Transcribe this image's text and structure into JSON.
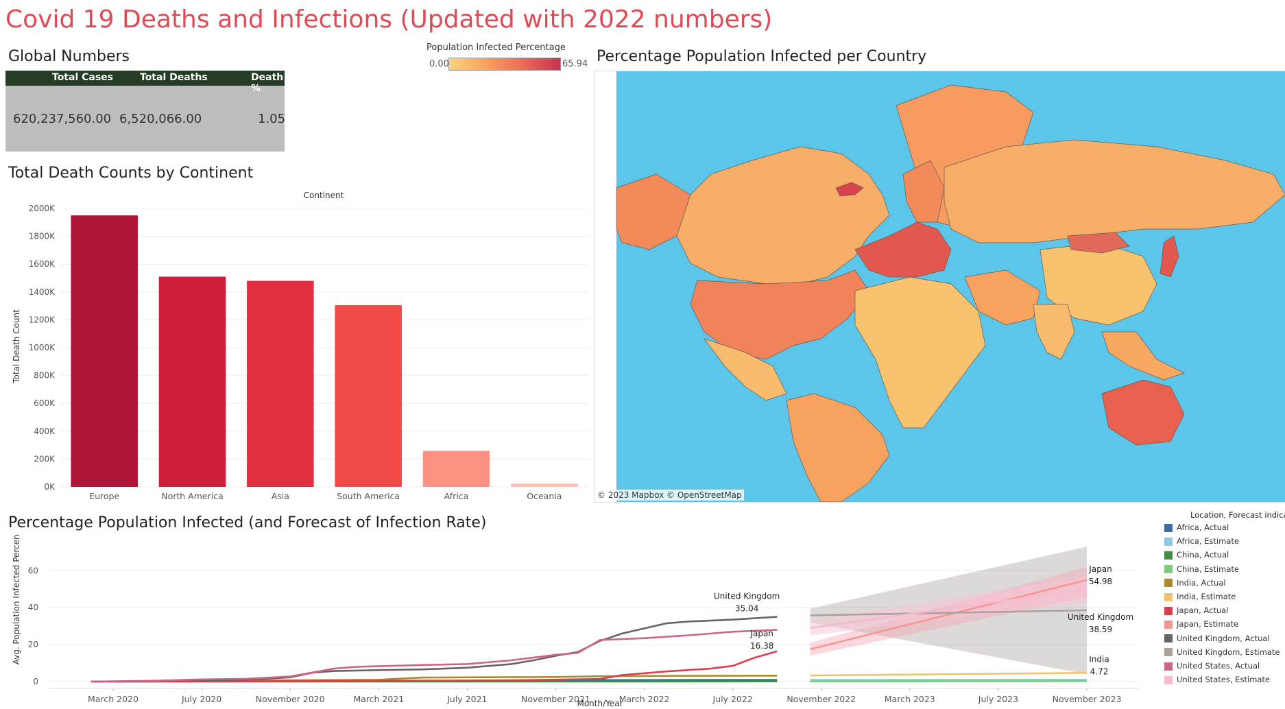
{
  "title": "Covid 19  Deaths and Infections (Updated with 2022 numbers)",
  "global": {
    "section_title": "Global Numbers",
    "headers": [
      "Total Cases",
      "Total Deaths",
      "Death %"
    ],
    "values": [
      "620,237,560.00",
      "6,520,066.00",
      "1.05"
    ]
  },
  "color_legend": {
    "title": "Population Infected Percentage",
    "min": "0.00",
    "max": "65.94",
    "colors": [
      "#fcd27e",
      "#c4354f"
    ]
  },
  "map": {
    "section_title": "Percentage Population Infected per Country",
    "attribution": "© 2023 Mapbox  © OpenStreetMap",
    "ocean_color": "#5bc6ea"
  },
  "chart_data": [
    {
      "type": "bar",
      "title": "Total Death Counts by Continent",
      "header": "Continent",
      "ylabel": "Total Death Count",
      "categories": [
        "Europe",
        "North America",
        "Asia",
        "South America",
        "Africa",
        "Oceania"
      ],
      "values": [
        1950000,
        1510000,
        1480000,
        1305000,
        258000,
        22000
      ],
      "colors": [
        "#ae1435",
        "#cc1d3a",
        "#e12f40",
        "#f24a47",
        "#fd9182",
        "#fbc0b2"
      ],
      "yticks": [
        "0K",
        "200K",
        "400K",
        "600K",
        "800K",
        "1000K",
        "1200K",
        "1400K",
        "1600K",
        "1800K",
        "2000K"
      ],
      "ylim": [
        0,
        2000000
      ],
      "grid": true
    },
    {
      "type": "line",
      "title": "Percentage Population Infected (and Forecast of Infection Rate)",
      "xlabel": "Month/Year",
      "ylabel": "Avg. Population Infected Percent",
      "xticks": [
        "March 2020",
        "July 2020",
        "November 2020",
        "March 2021",
        "July 2021",
        "November 2021",
        "March 2022",
        "July 2022",
        "November 2022",
        "March 2023",
        "July 2023",
        "November 2023"
      ],
      "yticks": [
        "0",
        "20",
        "40",
        "60"
      ],
      "ylim": [
        0,
        72
      ],
      "legend_title": "Location, Forecast indicator",
      "legend_position": "right",
      "x_unit": "months since January 2020",
      "series": [
        {
          "name": "Africa, Actual",
          "color": "#3e6f9f",
          "points": [
            [
              1,
              0
            ],
            [
              4,
              0.1
            ],
            [
              8,
              0.2
            ],
            [
              12,
              0.4
            ],
            [
              16,
              0.5
            ],
            [
              20,
              0.6
            ],
            [
              24,
              0.8
            ],
            [
              28,
              0.9
            ],
            [
              32,
              0.9
            ]
          ]
        },
        {
          "name": "Africa, Estimate",
          "color": "#8fc6e6",
          "points": [
            [
              33.5,
              0.9
            ],
            [
              46,
              1.0
            ]
          ]
        },
        {
          "name": "China, Actual",
          "color": "#3f8f3f",
          "points": [
            [
              1,
              0
            ],
            [
              8,
              0
            ],
            [
              16,
              0
            ],
            [
              24,
              0
            ],
            [
              32,
              0.1
            ]
          ]
        },
        {
          "name": "China, Estimate",
          "color": "#7ecb7a",
          "points": [
            [
              33.5,
              0.1
            ],
            [
              46,
              0.2
            ]
          ]
        },
        {
          "name": "India, Actual",
          "color": "#a98a2c",
          "points": [
            [
              1,
              0
            ],
            [
              6,
              0.4
            ],
            [
              10,
              0.7
            ],
            [
              14,
              1.0
            ],
            [
              16,
              2.2
            ],
            [
              18,
              2.3
            ],
            [
              22,
              2.5
            ],
            [
              24,
              2.9
            ],
            [
              28,
              3.1
            ],
            [
              32,
              3.2
            ]
          ]
        },
        {
          "name": "India, Estimate",
          "color": "#f0c36a",
          "points": [
            [
              33.5,
              3.3
            ],
            [
              46,
              4.72
            ]
          ]
        },
        {
          "name": "Japan, Actual",
          "color": "#d9404e",
          "points": [
            [
              1,
              0
            ],
            [
              8,
              0.1
            ],
            [
              12,
              0.3
            ],
            [
              16,
              0.5
            ],
            [
              20,
              0.7
            ],
            [
              24,
              1.4
            ],
            [
              25,
              3.5
            ],
            [
              27,
              5.5
            ],
            [
              29,
              7.0
            ],
            [
              30,
              8.5
            ],
            [
              31,
              13.0
            ],
            [
              32,
              16.38
            ]
          ]
        },
        {
          "name": "Japan, Estimate",
          "color": "#f7958f",
          "points": [
            [
              33.5,
              17.5
            ],
            [
              46,
              54.98
            ]
          ]
        },
        {
          "name": "United Kingdom, Actual",
          "color": "#6b6262",
          "points": [
            [
              2,
              0
            ],
            [
              4,
              0.3
            ],
            [
              6,
              0.6
            ],
            [
              8,
              1.0
            ],
            [
              10,
              2.3
            ],
            [
              11,
              4.8
            ],
            [
              12,
              5.7
            ],
            [
              14,
              6.2
            ],
            [
              16,
              6.6
            ],
            [
              18,
              7.5
            ],
            [
              20,
              9.5
            ],
            [
              21,
              11.5
            ],
            [
              22,
              14.0
            ],
            [
              23,
              16.0
            ],
            [
              24,
              22.0
            ],
            [
              25,
              26.0
            ],
            [
              27,
              31.5
            ],
            [
              28,
              32.5
            ],
            [
              30,
              33.5
            ],
            [
              32,
              35.04
            ]
          ]
        },
        {
          "name": "United Kingdom, Estimate",
          "color": "#aaa19c",
          "points": [
            [
              33.5,
              35.8
            ],
            [
              46,
              38.59
            ]
          ]
        },
        {
          "name": "United States, Actual",
          "color": "#cc6686",
          "points": [
            [
              1,
              0
            ],
            [
              4,
              0.5
            ],
            [
              6,
              1.2
            ],
            [
              8,
              1.5
            ],
            [
              10,
              2.8
            ],
            [
              12,
              7.0
            ],
            [
              13,
              8.0
            ],
            [
              16,
              9.0
            ],
            [
              18,
              9.5
            ],
            [
              20,
              11.5
            ],
            [
              22,
              14.5
            ],
            [
              23,
              15.5
            ],
            [
              24,
              22.5
            ],
            [
              26,
              23.5
            ],
            [
              28,
              25.0
            ],
            [
              30,
              27.0
            ],
            [
              32,
              28.0
            ]
          ]
        },
        {
          "name": "United States, Estimate",
          "color": "#f7b8d0",
          "points": [
            [
              33.5,
              29.0
            ],
            [
              46,
              50.0
            ]
          ]
        }
      ],
      "bands": [
        {
          "series": "United Kingdom, Estimate",
          "color": "#9d9390",
          "opacity": 0.35,
          "upper": [
            [
              33.5,
              39.5
            ],
            [
              46,
              73.0
            ]
          ],
          "lower": [
            [
              33.5,
              32.0
            ],
            [
              46,
              4.0
            ]
          ]
        },
        {
          "series": "Japan, Estimate",
          "color": "#f7a7b8",
          "opacity": 0.45,
          "upper": [
            [
              33.5,
              21.0
            ],
            [
              46,
              62.0
            ]
          ],
          "lower": [
            [
              33.5,
              14.0
            ],
            [
              46,
              46.0
            ]
          ]
        },
        {
          "series": "United States, Estimate",
          "color": "#fbc4d6",
          "opacity": 0.5,
          "upper": [
            [
              33.5,
              33.0
            ],
            [
              46,
              57.0
            ]
          ],
          "lower": [
            [
              33.5,
              25.0
            ],
            [
              46,
              43.0
            ]
          ]
        }
      ],
      "annotations": [
        {
          "name": "United Kingdom",
          "value": "35.04"
        },
        {
          "name": "Japan",
          "value": "16.38"
        },
        {
          "name": "Japan",
          "value": "54.98"
        },
        {
          "name": "United Kingdom",
          "value": "38.59"
        },
        {
          "name": "India",
          "value": "4.72"
        }
      ]
    }
  ]
}
